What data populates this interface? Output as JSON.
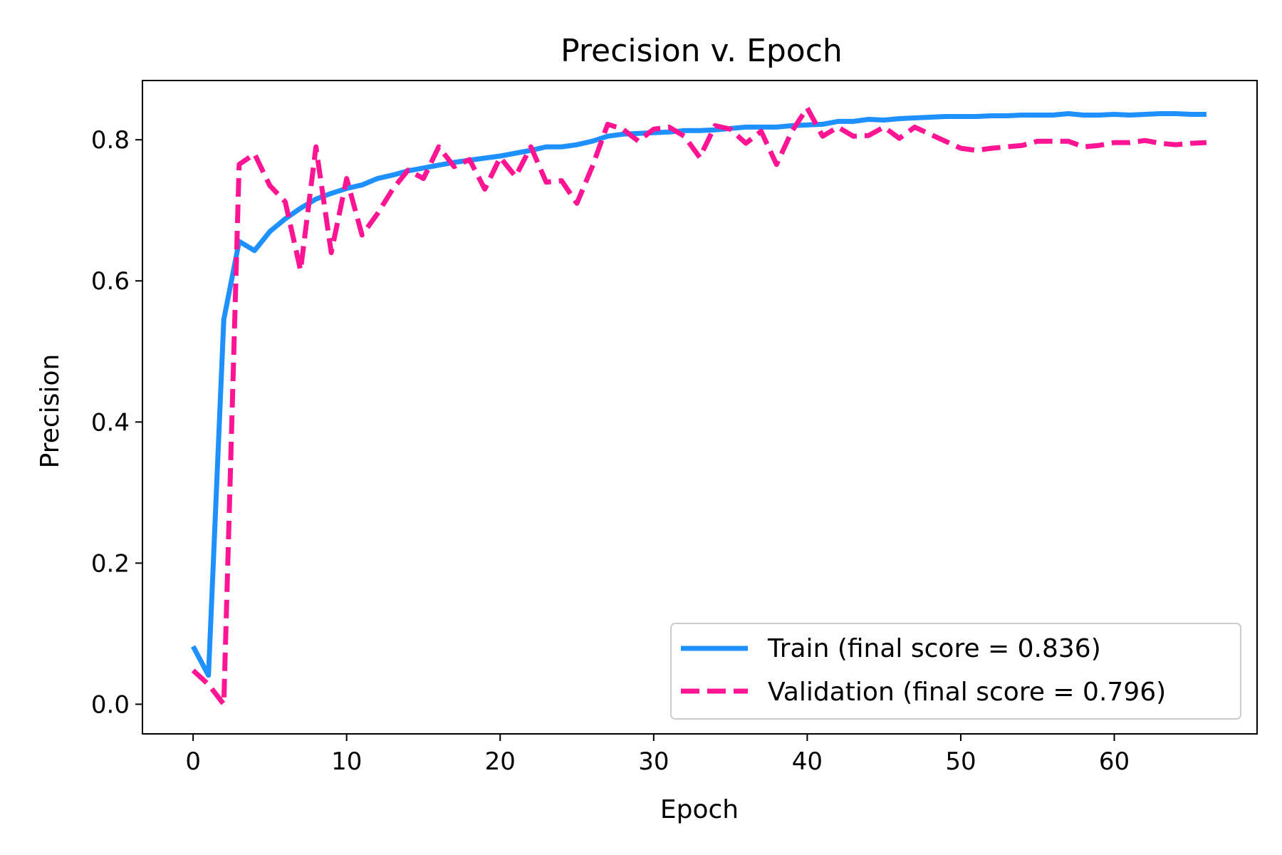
{
  "chart_data": {
    "type": "line",
    "title": "Precision v. Epoch",
    "xlabel": "Epoch",
    "ylabel": "Precision",
    "xlim": [
      -3.3,
      69.3
    ],
    "ylim": [
      -0.042,
      0.884
    ],
    "xticks": [
      0,
      10,
      20,
      30,
      40,
      50,
      60
    ],
    "yticks": [
      0.0,
      0.2,
      0.4,
      0.6,
      0.8
    ],
    "xtick_labels": [
      "0",
      "10",
      "20",
      "30",
      "40",
      "50",
      "60"
    ],
    "ytick_labels": [
      "0.0",
      "0.2",
      "0.4",
      "0.6",
      "0.8"
    ],
    "grid": false,
    "legend_position": "lower-right",
    "series": [
      {
        "name": "Train (final score = 0.836)",
        "color": "#1E90FF",
        "style": "solid",
        "x": [
          0,
          1,
          2,
          3,
          4,
          5,
          6,
          7,
          8,
          9,
          10,
          11,
          12,
          13,
          14,
          15,
          16,
          17,
          18,
          19,
          20,
          21,
          22,
          23,
          24,
          25,
          26,
          27,
          28,
          29,
          30,
          31,
          32,
          33,
          34,
          35,
          36,
          37,
          38,
          39,
          40,
          41,
          42,
          43,
          44,
          45,
          46,
          47,
          48,
          49,
          50,
          51,
          52,
          53,
          54,
          55,
          56,
          57,
          58,
          59,
          60,
          61,
          62,
          63,
          64,
          65,
          66
        ],
        "values": [
          0.082,
          0.041,
          0.545,
          0.656,
          0.643,
          0.67,
          0.688,
          0.703,
          0.716,
          0.724,
          0.731,
          0.736,
          0.745,
          0.75,
          0.756,
          0.76,
          0.764,
          0.768,
          0.771,
          0.774,
          0.777,
          0.781,
          0.785,
          0.79,
          0.79,
          0.793,
          0.798,
          0.805,
          0.808,
          0.809,
          0.81,
          0.811,
          0.813,
          0.813,
          0.814,
          0.816,
          0.818,
          0.818,
          0.818,
          0.82,
          0.821,
          0.822,
          0.826,
          0.826,
          0.829,
          0.828,
          0.83,
          0.831,
          0.832,
          0.833,
          0.833,
          0.833,
          0.834,
          0.834,
          0.835,
          0.835,
          0.835,
          0.837,
          0.835,
          0.835,
          0.836,
          0.835,
          0.836,
          0.837,
          0.837,
          0.836,
          0.836
        ]
      },
      {
        "name": "Validation (final score = 0.796)",
        "color": "#FF1493",
        "style": "dashed",
        "x": [
          0,
          1,
          2,
          3,
          4,
          5,
          6,
          7,
          8,
          9,
          10,
          11,
          12,
          13,
          14,
          15,
          16,
          17,
          18,
          19,
          20,
          21,
          22,
          23,
          24,
          25,
          26,
          27,
          28,
          29,
          30,
          31,
          32,
          33,
          34,
          35,
          36,
          37,
          38,
          39,
          40,
          41,
          42,
          43,
          44,
          45,
          46,
          47,
          48,
          49,
          50,
          51,
          52,
          53,
          54,
          55,
          56,
          57,
          58,
          59,
          60,
          61,
          62,
          63,
          64,
          65,
          66
        ],
        "values": [
          0.048,
          0.028,
          0.0,
          0.765,
          0.78,
          0.735,
          0.712,
          0.615,
          0.79,
          0.64,
          0.745,
          0.665,
          0.695,
          0.73,
          0.757,
          0.745,
          0.79,
          0.762,
          0.772,
          0.73,
          0.775,
          0.748,
          0.79,
          0.74,
          0.742,
          0.71,
          0.762,
          0.822,
          0.815,
          0.798,
          0.815,
          0.818,
          0.805,
          0.775,
          0.82,
          0.815,
          0.795,
          0.812,
          0.765,
          0.812,
          0.845,
          0.805,
          0.818,
          0.805,
          0.806,
          0.818,
          0.802,
          0.818,
          0.808,
          0.798,
          0.788,
          0.785,
          0.788,
          0.79,
          0.792,
          0.798,
          0.798,
          0.798,
          0.79,
          0.792,
          0.796,
          0.796,
          0.799,
          0.795,
          0.793,
          0.795,
          0.796
        ]
      }
    ]
  }
}
